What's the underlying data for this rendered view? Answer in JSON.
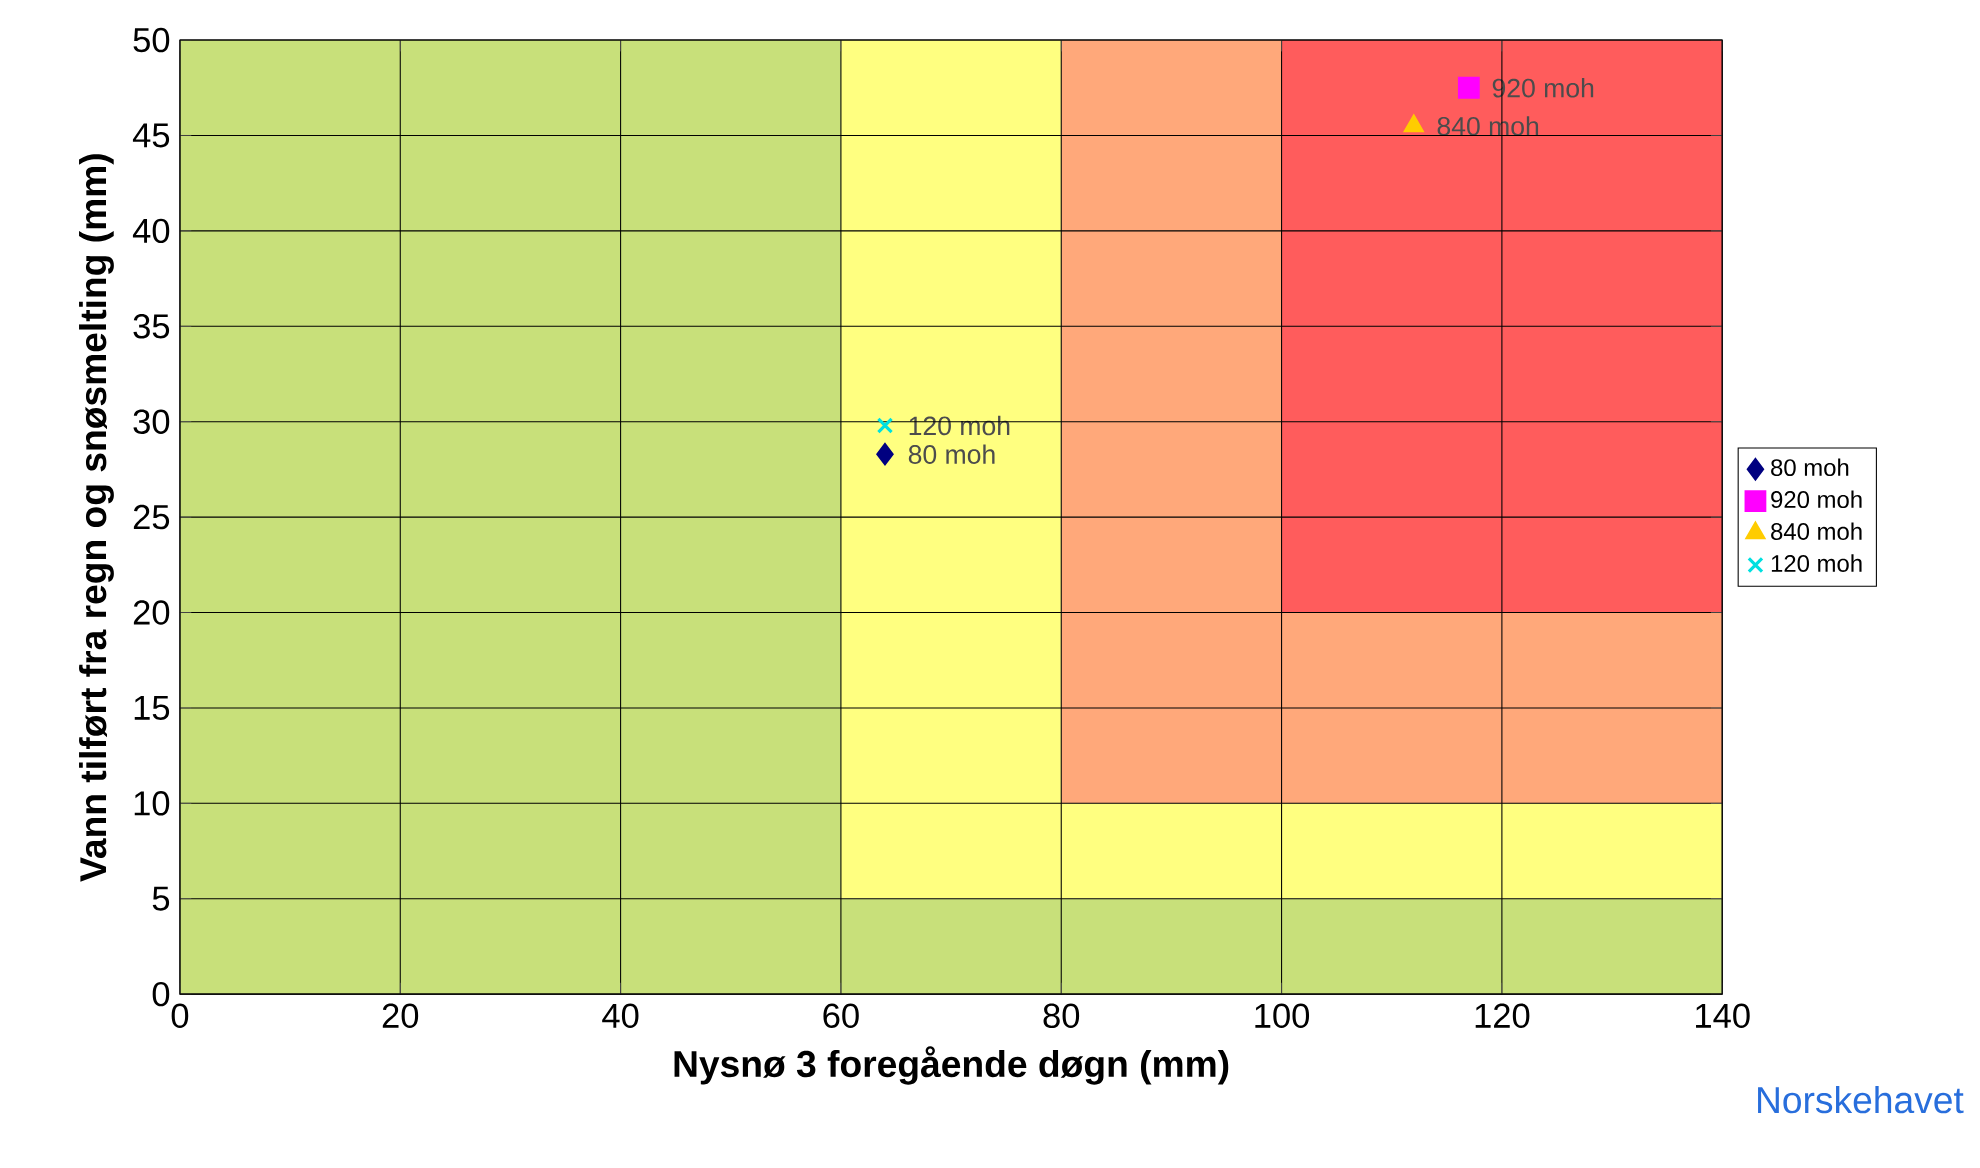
{
  "chart_data": {
    "type": "scatter",
    "xlabel": "Nysnø 3 foregående døgn (mm)",
    "ylabel": "Vann tilført fra regn og snøsmelting (mm)",
    "xlim": [
      0,
      140
    ],
    "ylim": [
      0,
      50
    ],
    "xticks": [
      0,
      20,
      40,
      60,
      80,
      100,
      120,
      140
    ],
    "yticks": [
      0,
      5,
      10,
      15,
      20,
      25,
      30,
      35,
      40,
      45,
      50
    ],
    "grid": true,
    "legend": "right",
    "stacked": true,
    "annotations": [
      "Norskehavet"
    ],
    "series": [
      {
        "type": "area",
        "color": "#c8e07a",
        "x": [
          0,
          60,
          60,
          80,
          80,
          100,
          100,
          140
        ],
        "values": [
          50,
          50,
          5,
          5,
          5,
          5,
          5,
          5
        ]
      },
      {
        "type": "area",
        "color": "#ffff80",
        "x": [
          0,
          60,
          60,
          80,
          80,
          100,
          100,
          140
        ],
        "values": [
          0,
          0,
          45,
          45,
          5,
          5,
          5,
          5
        ]
      },
      {
        "type": "area",
        "color": "#ffa87a",
        "x": [
          0,
          60,
          60,
          80,
          80,
          100,
          100,
          140
        ],
        "values": [
          0,
          0,
          0,
          0,
          40,
          40,
          10,
          10
        ]
      },
      {
        "type": "area",
        "color": "#ff5c5c",
        "x": [
          0,
          60,
          60,
          80,
          80,
          100,
          100,
          140
        ],
        "values": [
          0,
          0,
          0,
          0,
          0,
          0,
          30,
          30
        ]
      },
      {
        "name": "80 moh",
        "color": "#000080",
        "marker": "diamond",
        "x": [
          64
        ],
        "values": [
          28.3
        ]
      },
      {
        "name": "920 moh",
        "color": "#ff00ff",
        "marker": "square",
        "x": [
          117
        ],
        "values": [
          47.5
        ]
      },
      {
        "name": "840 moh",
        "color": "#ffcc00",
        "marker": "triangle",
        "x": [
          112
        ],
        "values": [
          45.5
        ]
      },
      {
        "name": "120 moh",
        "color": "#00e0e0",
        "marker": "cross",
        "x": [
          64
        ],
        "values": [
          29.8
        ]
      }
    ]
  }
}
